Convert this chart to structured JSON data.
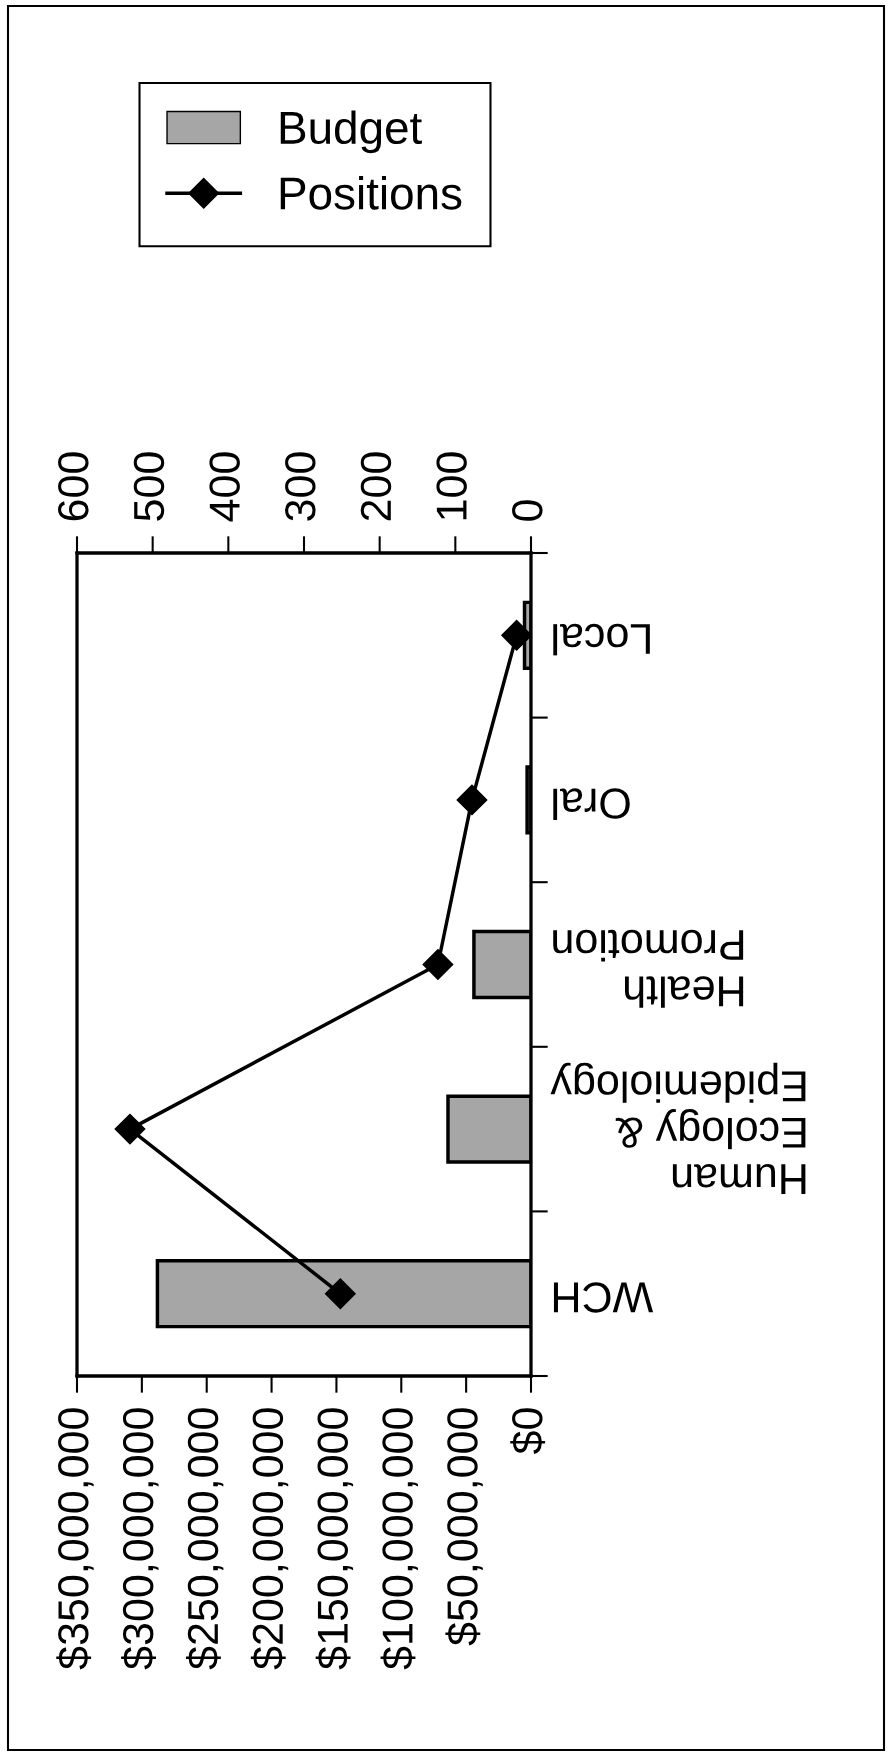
{
  "chart_data": {
    "type": "bar",
    "orientation": "horizontal",
    "categories": [
      "Local",
      "Oral",
      "Health\nPromotion",
      "Human\nEcology &\nEpidemiology",
      "WCH"
    ],
    "series": [
      {
        "name": "Budget",
        "color": "#a6a6a6",
        "values": [
          5000000,
          3000000,
          44000000,
          64000000,
          288000000
        ]
      },
      {
        "name": "Positions",
        "type": "line",
        "axis": "x2",
        "color": "#000000",
        "marker": "diamond",
        "values": [
          19,
          78,
          123,
          530,
          252
        ]
      }
    ],
    "xlim": [
      350000000,
      0
    ],
    "xticks": [
      {
        "value": 350000000,
        "label": "$350,000,000"
      },
      {
        "value": 300000000,
        "label": "$300,000,000"
      },
      {
        "value": 250000000,
        "label": "$250,000,000"
      },
      {
        "value": 200000000,
        "label": "$200,000,000"
      },
      {
        "value": 150000000,
        "label": "$150,000,000"
      },
      {
        "value": 100000000,
        "label": "$100,000,000"
      },
      {
        "value": 50000000,
        "label": "$50,000,000"
      },
      {
        "value": 0,
        "label": "$0"
      }
    ],
    "x2lim": [
      600,
      0
    ],
    "x2ticks": [
      600,
      500,
      400,
      300,
      200,
      100,
      0
    ],
    "grid": false,
    "legend": "top"
  }
}
